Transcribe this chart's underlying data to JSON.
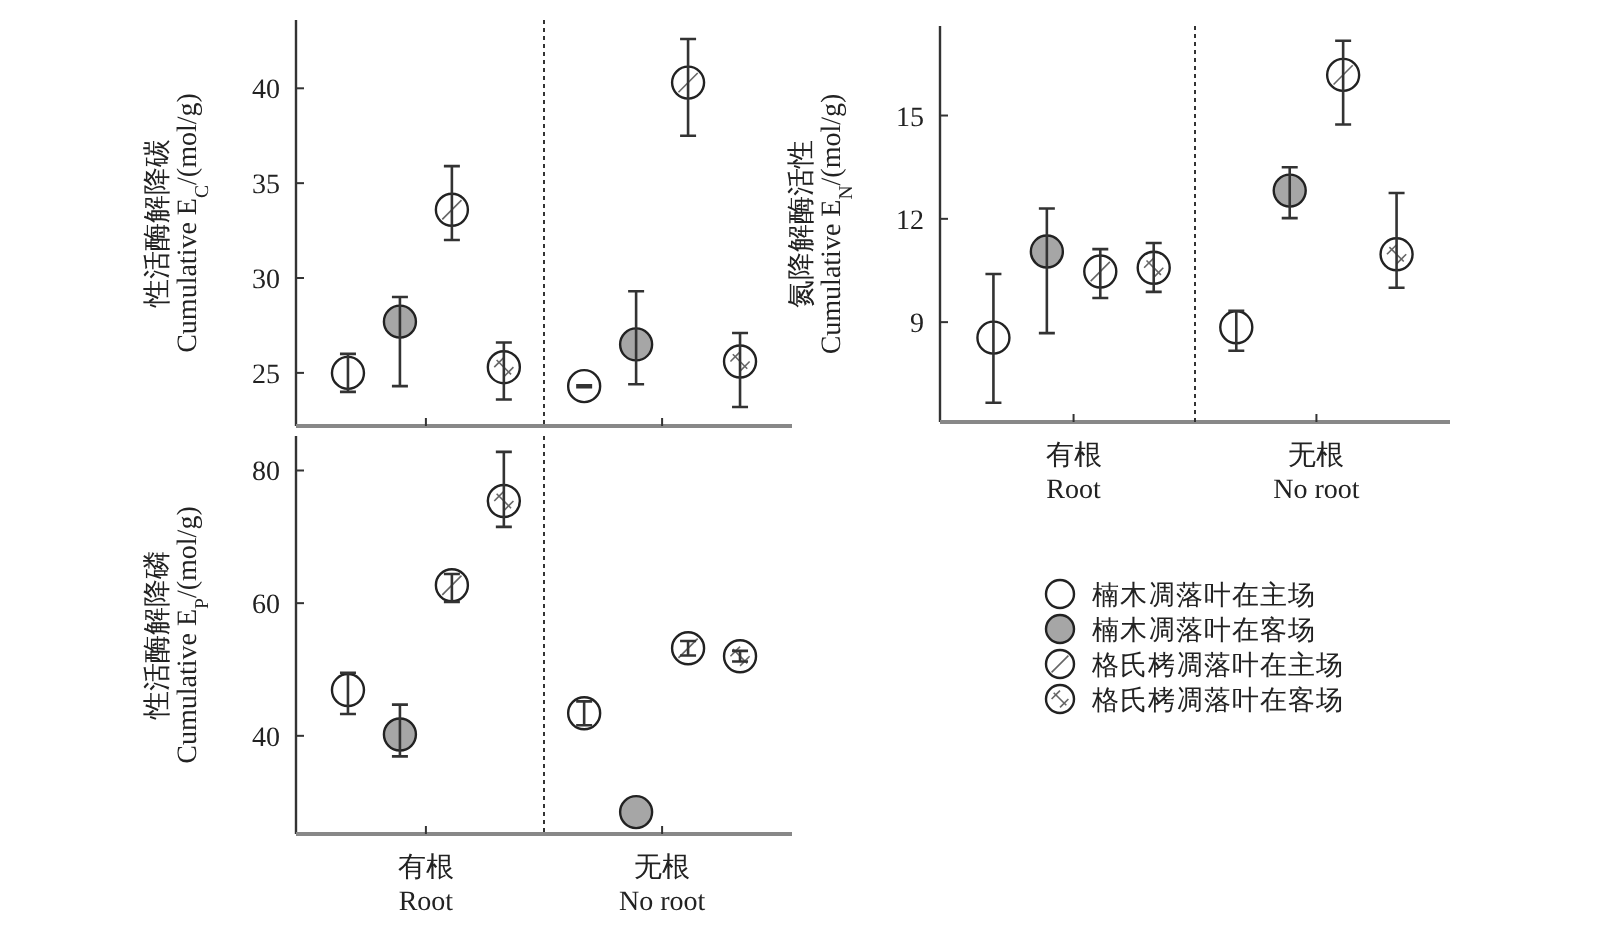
{
  "chart_data": [
    {
      "type": "scatter",
      "ylabel": "性活酶解降碳\nCumulative E$_{C}$/(mol/g)",
      "categories": [
        null,
        null
      ],
      "ylim": [
        22.2,
        43.6
      ],
      "yticks": [
        25,
        30,
        35,
        40
      ],
      "tick_labels": "y",
      "marker": "circle",
      "legend": false,
      "series": [
        {
          "color": "#ffffff",
          "values": [
            25.0,
            24.3
          ],
          "errors": [
            [
              24.0,
              26.0
            ],
            [
              24.25,
              24.35
            ]
          ]
        },
        {
          "color": "#a6a6a6",
          "values": [
            27.7,
            26.5
          ],
          "errors": [
            [
              24.3,
              29.0
            ],
            [
              24.4,
              29.3
            ]
          ]
        },
        {
          "color": "#ffffff",
          "values": [
            33.6,
            40.3
          ],
          "errors": [
            [
              32.0,
              35.9
            ],
            [
              37.5,
              42.6
            ]
          ]
        },
        {
          "color": "#ffffff",
          "values": [
            25.3,
            25.6
          ],
          "errors": [
            [
              23.6,
              26.6
            ],
            [
              23.2,
              27.1
            ]
          ]
        }
      ]
    },
    {
      "type": "scatter",
      "ylabel": "性活酶解降磷\nCumulative E$_{P}$/(mol/g)",
      "categories": [
        "有根\nRoot",
        "无根\nNo root"
      ],
      "ylim": [
        25.2,
        85.2
      ],
      "yticks": [
        40,
        60,
        80
      ],
      "marker": "circle",
      "legend": false,
      "series": [
        {
          "color": "#ffffff",
          "values": [
            46.9,
            43.4
          ],
          "errors": [
            [
              43.3,
              49.5
            ],
            [
              41.6,
              45.2
            ]
          ]
        },
        {
          "color": "#a6a6a6",
          "values": [
            40.2,
            28.5
          ],
          "errors": [
            [
              36.9,
              44.7
            ],
            null
          ]
        },
        {
          "color": "#ffffff",
          "values": [
            62.7,
            53.2
          ],
          "errors": [
            [
              60.2,
              64.4
            ],
            [
              52.1,
              54.3
            ]
          ]
        },
        {
          "color": "#ffffff",
          "values": [
            75.4,
            52.0
          ],
          "errors": [
            [
              71.5,
              82.8
            ],
            [
              51.2,
              52.8
            ]
          ]
        }
      ]
    },
    {
      "type": "scatter",
      "ylabel": "氮降解酶活性\nCumulative E$_{N}$/(mol/g)",
      "categories": [
        "有根\nRoot",
        "无根\nNo root"
      ],
      "ylim": [
        6.1,
        17.6
      ],
      "yticks": [
        9,
        12,
        15
      ],
      "marker": "circle",
      "legend": "bottom",
      "series": [
        {
          "name": "楠木凋落叶在主场",
          "color": "#ffffff",
          "values": [
            8.55,
            8.85
          ],
          "errors": [
            [
              6.66,
              10.4
            ],
            [
              8.17,
              9.33
            ]
          ]
        },
        {
          "name": "楠木凋落叶在客场",
          "color": "#a6a6a6",
          "values": [
            11.05,
            12.82
          ],
          "errors": [
            [
              8.68,
              12.3
            ],
            [
              12.02,
              13.5
            ]
          ]
        },
        {
          "name": "格氏栲凋落叶在主场",
          "color": "#ffffff",
          "values": [
            10.47,
            16.18
          ],
          "errors": [
            [
              9.7,
              11.12
            ],
            [
              14.74,
              17.17
            ]
          ]
        },
        {
          "name": "格氏栲凋落叶在客场",
          "color": "#ffffff",
          "values": [
            10.58,
            10.97
          ],
          "errors": [
            [
              9.88,
              11.3
            ],
            [
              10.0,
              12.75
            ]
          ]
        }
      ]
    }
  ]
}
